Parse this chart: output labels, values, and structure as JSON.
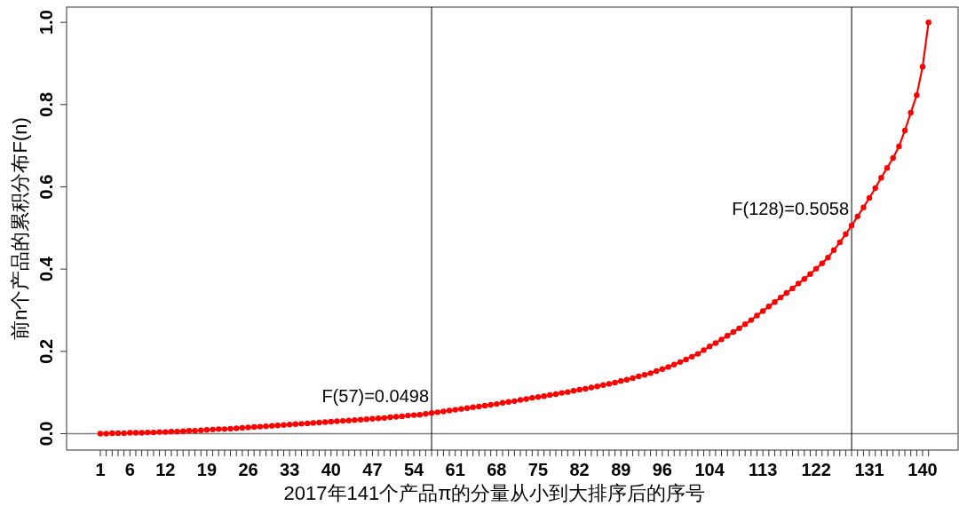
{
  "chart_data": {
    "type": "line",
    "xlabel": "2017年141个产品π的分量从小到大排序后的序号",
    "ylabel": "前n个产品的累积分布F(n)",
    "x": [
      1,
      2,
      3,
      4,
      5,
      6,
      7,
      8,
      9,
      10,
      11,
      12,
      13,
      14,
      15,
      16,
      17,
      18,
      19,
      20,
      21,
      22,
      23,
      24,
      25,
      26,
      27,
      28,
      29,
      30,
      31,
      32,
      33,
      34,
      35,
      36,
      37,
      38,
      39,
      40,
      41,
      42,
      43,
      44,
      45,
      46,
      47,
      48,
      49,
      50,
      51,
      52,
      53,
      54,
      55,
      56,
      57,
      58,
      59,
      60,
      61,
      62,
      63,
      64,
      65,
      66,
      67,
      68,
      69,
      70,
      71,
      72,
      73,
      74,
      75,
      76,
      77,
      78,
      79,
      80,
      81,
      82,
      83,
      84,
      85,
      86,
      87,
      88,
      89,
      90,
      91,
      92,
      93,
      94,
      95,
      96,
      97,
      98,
      99,
      100,
      101,
      102,
      103,
      104,
      105,
      106,
      107,
      108,
      109,
      110,
      111,
      112,
      113,
      114,
      115,
      116,
      117,
      118,
      119,
      120,
      121,
      122,
      123,
      124,
      125,
      126,
      127,
      128,
      129,
      130,
      131,
      132,
      133,
      134,
      135,
      136,
      137,
      138,
      139,
      140,
      141
    ],
    "series": [
      {
        "color": "#ff0000",
        "values": [
          0.0,
          0.0,
          0.001,
          0.001,
          0.001,
          0.002,
          0.002,
          0.002,
          0.003,
          0.003,
          0.004,
          0.004,
          0.005,
          0.005,
          0.006,
          0.007,
          0.007,
          0.008,
          0.009,
          0.01,
          0.011,
          0.011,
          0.012,
          0.013,
          0.014,
          0.015,
          0.016,
          0.017,
          0.018,
          0.019,
          0.02,
          0.021,
          0.022,
          0.023,
          0.024,
          0.025,
          0.026,
          0.027,
          0.028,
          0.029,
          0.03,
          0.031,
          0.032,
          0.033,
          0.034,
          0.035,
          0.036,
          0.037,
          0.038,
          0.04,
          0.041,
          0.042,
          0.044,
          0.045,
          0.046,
          0.048,
          0.05,
          0.052,
          0.054,
          0.056,
          0.058,
          0.06,
          0.062,
          0.064,
          0.066,
          0.068,
          0.07,
          0.072,
          0.075,
          0.077,
          0.079,
          0.082,
          0.084,
          0.087,
          0.089,
          0.091,
          0.094,
          0.096,
          0.099,
          0.101,
          0.104,
          0.107,
          0.109,
          0.112,
          0.115,
          0.118,
          0.121,
          0.124,
          0.128,
          0.131,
          0.135,
          0.139,
          0.143,
          0.147,
          0.152,
          0.157,
          0.162,
          0.168,
          0.174,
          0.18,
          0.187,
          0.194,
          0.203,
          0.212,
          0.22,
          0.229,
          0.238,
          0.247,
          0.256,
          0.266,
          0.276,
          0.287,
          0.298,
          0.309,
          0.32,
          0.331,
          0.342,
          0.353,
          0.365,
          0.376,
          0.388,
          0.401,
          0.414,
          0.428,
          0.446,
          0.465,
          0.485,
          0.506,
          0.528,
          0.55,
          0.573,
          0.597,
          0.622,
          0.646,
          0.67,
          0.698,
          0.737,
          0.78,
          0.823,
          0.892,
          1.0
        ]
      }
    ],
    "marker": "circle",
    "line_style": "solid",
    "grid": false,
    "xlim": [
      -4.7,
      146
    ],
    "ylim": [
      -0.04,
      1.037
    ],
    "xticks": [
      1,
      {
        "value": 2,
        "label": null
      },
      {
        "value": 3,
        "label": null
      },
      {
        "value": 4,
        "label": null
      },
      {
        "value": 5,
        "label": null
      },
      6,
      {
        "value": 7,
        "label": null
      },
      {
        "value": 8,
        "label": null
      },
      {
        "value": 9,
        "label": null
      },
      {
        "value": 10,
        "label": null
      },
      {
        "value": 11,
        "label": null
      },
      12,
      {
        "value": 13,
        "label": null
      },
      {
        "value": 14,
        "label": null
      },
      {
        "value": 15,
        "label": null
      },
      {
        "value": 16,
        "label": null
      },
      {
        "value": 17,
        "label": null
      },
      {
        "value": 18,
        "label": null
      },
      19,
      {
        "value": 20,
        "label": null
      },
      {
        "value": 21,
        "label": null
      },
      {
        "value": 22,
        "label": null
      },
      {
        "value": 23,
        "label": null
      },
      {
        "value": 24,
        "label": null
      },
      {
        "value": 25,
        "label": null
      },
      26,
      {
        "value": 27,
        "label": null
      },
      {
        "value": 28,
        "label": null
      },
      {
        "value": 29,
        "label": null
      },
      {
        "value": 30,
        "label": null
      },
      {
        "value": 31,
        "label": null
      },
      {
        "value": 32,
        "label": null
      },
      33,
      {
        "value": 34,
        "label": null
      },
      {
        "value": 35,
        "label": null
      },
      {
        "value": 36,
        "label": null
      },
      {
        "value": 37,
        "label": null
      },
      {
        "value": 38,
        "label": null
      },
      {
        "value": 39,
        "label": null
      },
      40,
      {
        "value": 41,
        "label": null
      },
      {
        "value": 42,
        "label": null
      },
      {
        "value": 43,
        "label": null
      },
      {
        "value": 44,
        "label": null
      },
      {
        "value": 45,
        "label": null
      },
      {
        "value": 46,
        "label": null
      },
      47,
      {
        "value": 48,
        "label": null
      },
      {
        "value": 49,
        "label": null
      },
      {
        "value": 50,
        "label": null
      },
      {
        "value": 51,
        "label": null
      },
      {
        "value": 52,
        "label": null
      },
      {
        "value": 53,
        "label": null
      },
      54,
      {
        "value": 55,
        "label": null
      },
      {
        "value": 56,
        "label": null
      },
      {
        "value": 57,
        "label": null
      },
      {
        "value": 58,
        "label": null
      },
      {
        "value": 59,
        "label": null
      },
      {
        "value": 60,
        "label": null
      },
      61,
      {
        "value": 62,
        "label": null
      },
      {
        "value": 63,
        "label": null
      },
      {
        "value": 64,
        "label": null
      },
      {
        "value": 65,
        "label": null
      },
      {
        "value": 66,
        "label": null
      },
      {
        "value": 67,
        "label": null
      },
      68,
      {
        "value": 69,
        "label": null
      },
      {
        "value": 70,
        "label": null
      },
      {
        "value": 71,
        "label": null
      },
      {
        "value": 72,
        "label": null
      },
      {
        "value": 73,
        "label": null
      },
      {
        "value": 74,
        "label": null
      },
      75,
      {
        "value": 76,
        "label": null
      },
      {
        "value": 77,
        "label": null
      },
      {
        "value": 78,
        "label": null
      },
      {
        "value": 79,
        "label": null
      },
      {
        "value": 80,
        "label": null
      },
      {
        "value": 81,
        "label": null
      },
      82,
      {
        "value": 83,
        "label": null
      },
      {
        "value": 84,
        "label": null
      },
      {
        "value": 85,
        "label": null
      },
      {
        "value": 86,
        "label": null
      },
      {
        "value": 87,
        "label": null
      },
      {
        "value": 88,
        "label": null
      },
      89,
      {
        "value": 90,
        "label": null
      },
      {
        "value": 91,
        "label": null
      },
      {
        "value": 92,
        "label": null
      },
      {
        "value": 93,
        "label": null
      },
      {
        "value": 94,
        "label": null
      },
      {
        "value": 95,
        "label": null
      },
      96,
      {
        "value": 97,
        "label": null
      },
      {
        "value": 98,
        "label": null
      },
      {
        "value": 99,
        "label": null
      },
      {
        "value": 100,
        "label": null
      },
      {
        "value": 101,
        "label": null
      },
      {
        "value": 102,
        "label": null
      },
      {
        "value": 103,
        "label": null
      },
      104,
      {
        "value": 105,
        "label": null
      },
      {
        "value": 106,
        "label": null
      },
      {
        "value": 107,
        "label": null
      },
      {
        "value": 108,
        "label": null
      },
      {
        "value": 109,
        "label": null
      },
      {
        "value": 110,
        "label": null
      },
      {
        "value": 111,
        "label": null
      },
      {
        "value": 112,
        "label": null
      },
      113,
      {
        "value": 114,
        "label": null
      },
      {
        "value": 115,
        "label": null
      },
      {
        "value": 116,
        "label": null
      },
      {
        "value": 117,
        "label": null
      },
      {
        "value": 118,
        "label": null
      },
      {
        "value": 119,
        "label": null
      },
      {
        "value": 120,
        "label": null
      },
      {
        "value": 121,
        "label": null
      },
      122,
      {
        "value": 123,
        "label": null
      },
      {
        "value": 124,
        "label": null
      },
      {
        "value": 125,
        "label": null
      },
      {
        "value": 126,
        "label": null
      },
      {
        "value": 127,
        "label": null
      },
      {
        "value": 128,
        "label": null
      },
      {
        "value": 129,
        "label": null
      },
      {
        "value": 130,
        "label": null
      },
      131,
      {
        "value": 132,
        "label": null
      },
      {
        "value": 133,
        "label": null
      },
      {
        "value": 134,
        "label": null
      },
      {
        "value": 135,
        "label": null
      },
      {
        "value": 136,
        "label": null
      },
      {
        "value": 137,
        "label": null
      },
      {
        "value": 138,
        "label": null
      },
      {
        "value": 139,
        "label": null
      },
      140,
      {
        "value": 141,
        "label": null
      }
    ],
    "yticks": [
      {
        "value": 0,
        "label": "0.0"
      },
      {
        "value": 0.2,
        "label": "0.2"
      },
      {
        "value": 0.4,
        "label": "0.4"
      },
      {
        "value": 0.6,
        "label": "0.6"
      },
      {
        "value": 0.8,
        "label": "0.8"
      },
      {
        "value": 1.0,
        "label": "1.0"
      }
    ],
    "ref_lines": [
      {
        "axis": "y",
        "value": 0,
        "color": "#808080"
      },
      {
        "axis": "x",
        "value": 57,
        "color": "#000000"
      },
      {
        "axis": "x",
        "value": 128,
        "color": "#000000"
      }
    ],
    "annotations": [
      {
        "text": "F(57)=0.0498",
        "x": 57,
        "y": 0.0498
      },
      {
        "text": "F(128)=0.5058",
        "x": 128,
        "y": 0.5058
      }
    ]
  }
}
